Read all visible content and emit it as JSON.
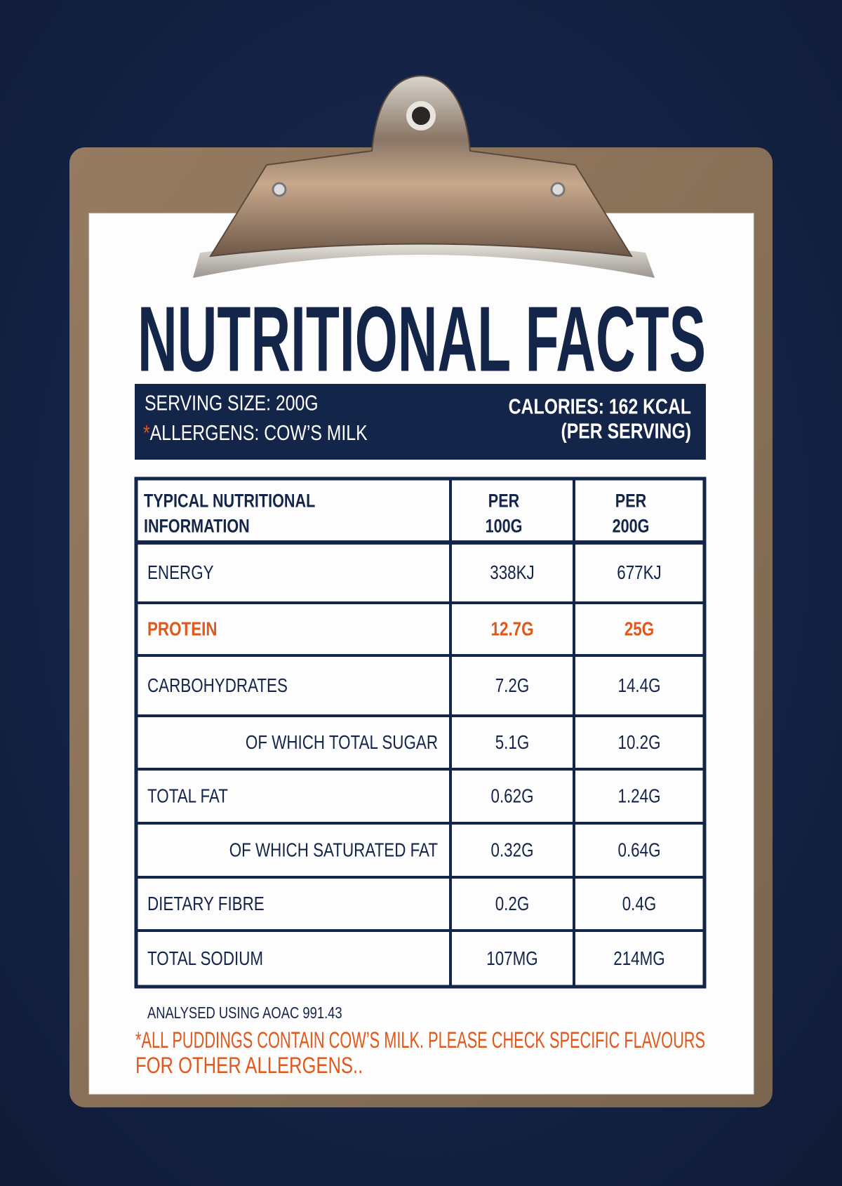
{
  "header": {
    "title": "NUTRITIONAL FACTS"
  },
  "banner": {
    "serving_size": "SERVING SIZE: 200G",
    "allergen_mark": "*",
    "allergens": "ALLERGENS: COW’S MILK",
    "calories": "CALORIES: 162 KCAL",
    "per_serving": "(PER SERVING)"
  },
  "table": {
    "headers": [
      [
        "TYPICAL NUTRITIONAL",
        "INFORMATION"
      ],
      [
        "PER",
        "100G"
      ],
      [
        "PER",
        "200G"
      ]
    ],
    "rows": [
      [
        "ENERGY",
        "338KJ",
        "677KJ"
      ],
      [
        "PROTEIN",
        "12.7G",
        "25G"
      ],
      [
        "CARBOHYDRATES",
        "7.2G",
        "14.4G"
      ],
      [
        "OF WHICH TOTAL SUGAR",
        "5.1G",
        "10.2G"
      ],
      [
        "TOTAL FAT",
        "0.62G",
        "1.24G"
      ],
      [
        "OF WHICH SATURATED FAT",
        "0.32G",
        "0.64G"
      ],
      [
        "DIETARY FIBRE",
        "0.2G",
        "0.4G"
      ],
      [
        "TOTAL SODIUM",
        "107MG",
        "214MG"
      ]
    ]
  },
  "footer": {
    "method": "ANALYSED USING AOAC 991.43",
    "note": [
      "*ALL PUDDINGS CONTAIN COW’S MILK. PLEASE CHECK SPECIFIC FLAVOURS",
      "FOR OTHER ALLERGENS.."
    ]
  }
}
